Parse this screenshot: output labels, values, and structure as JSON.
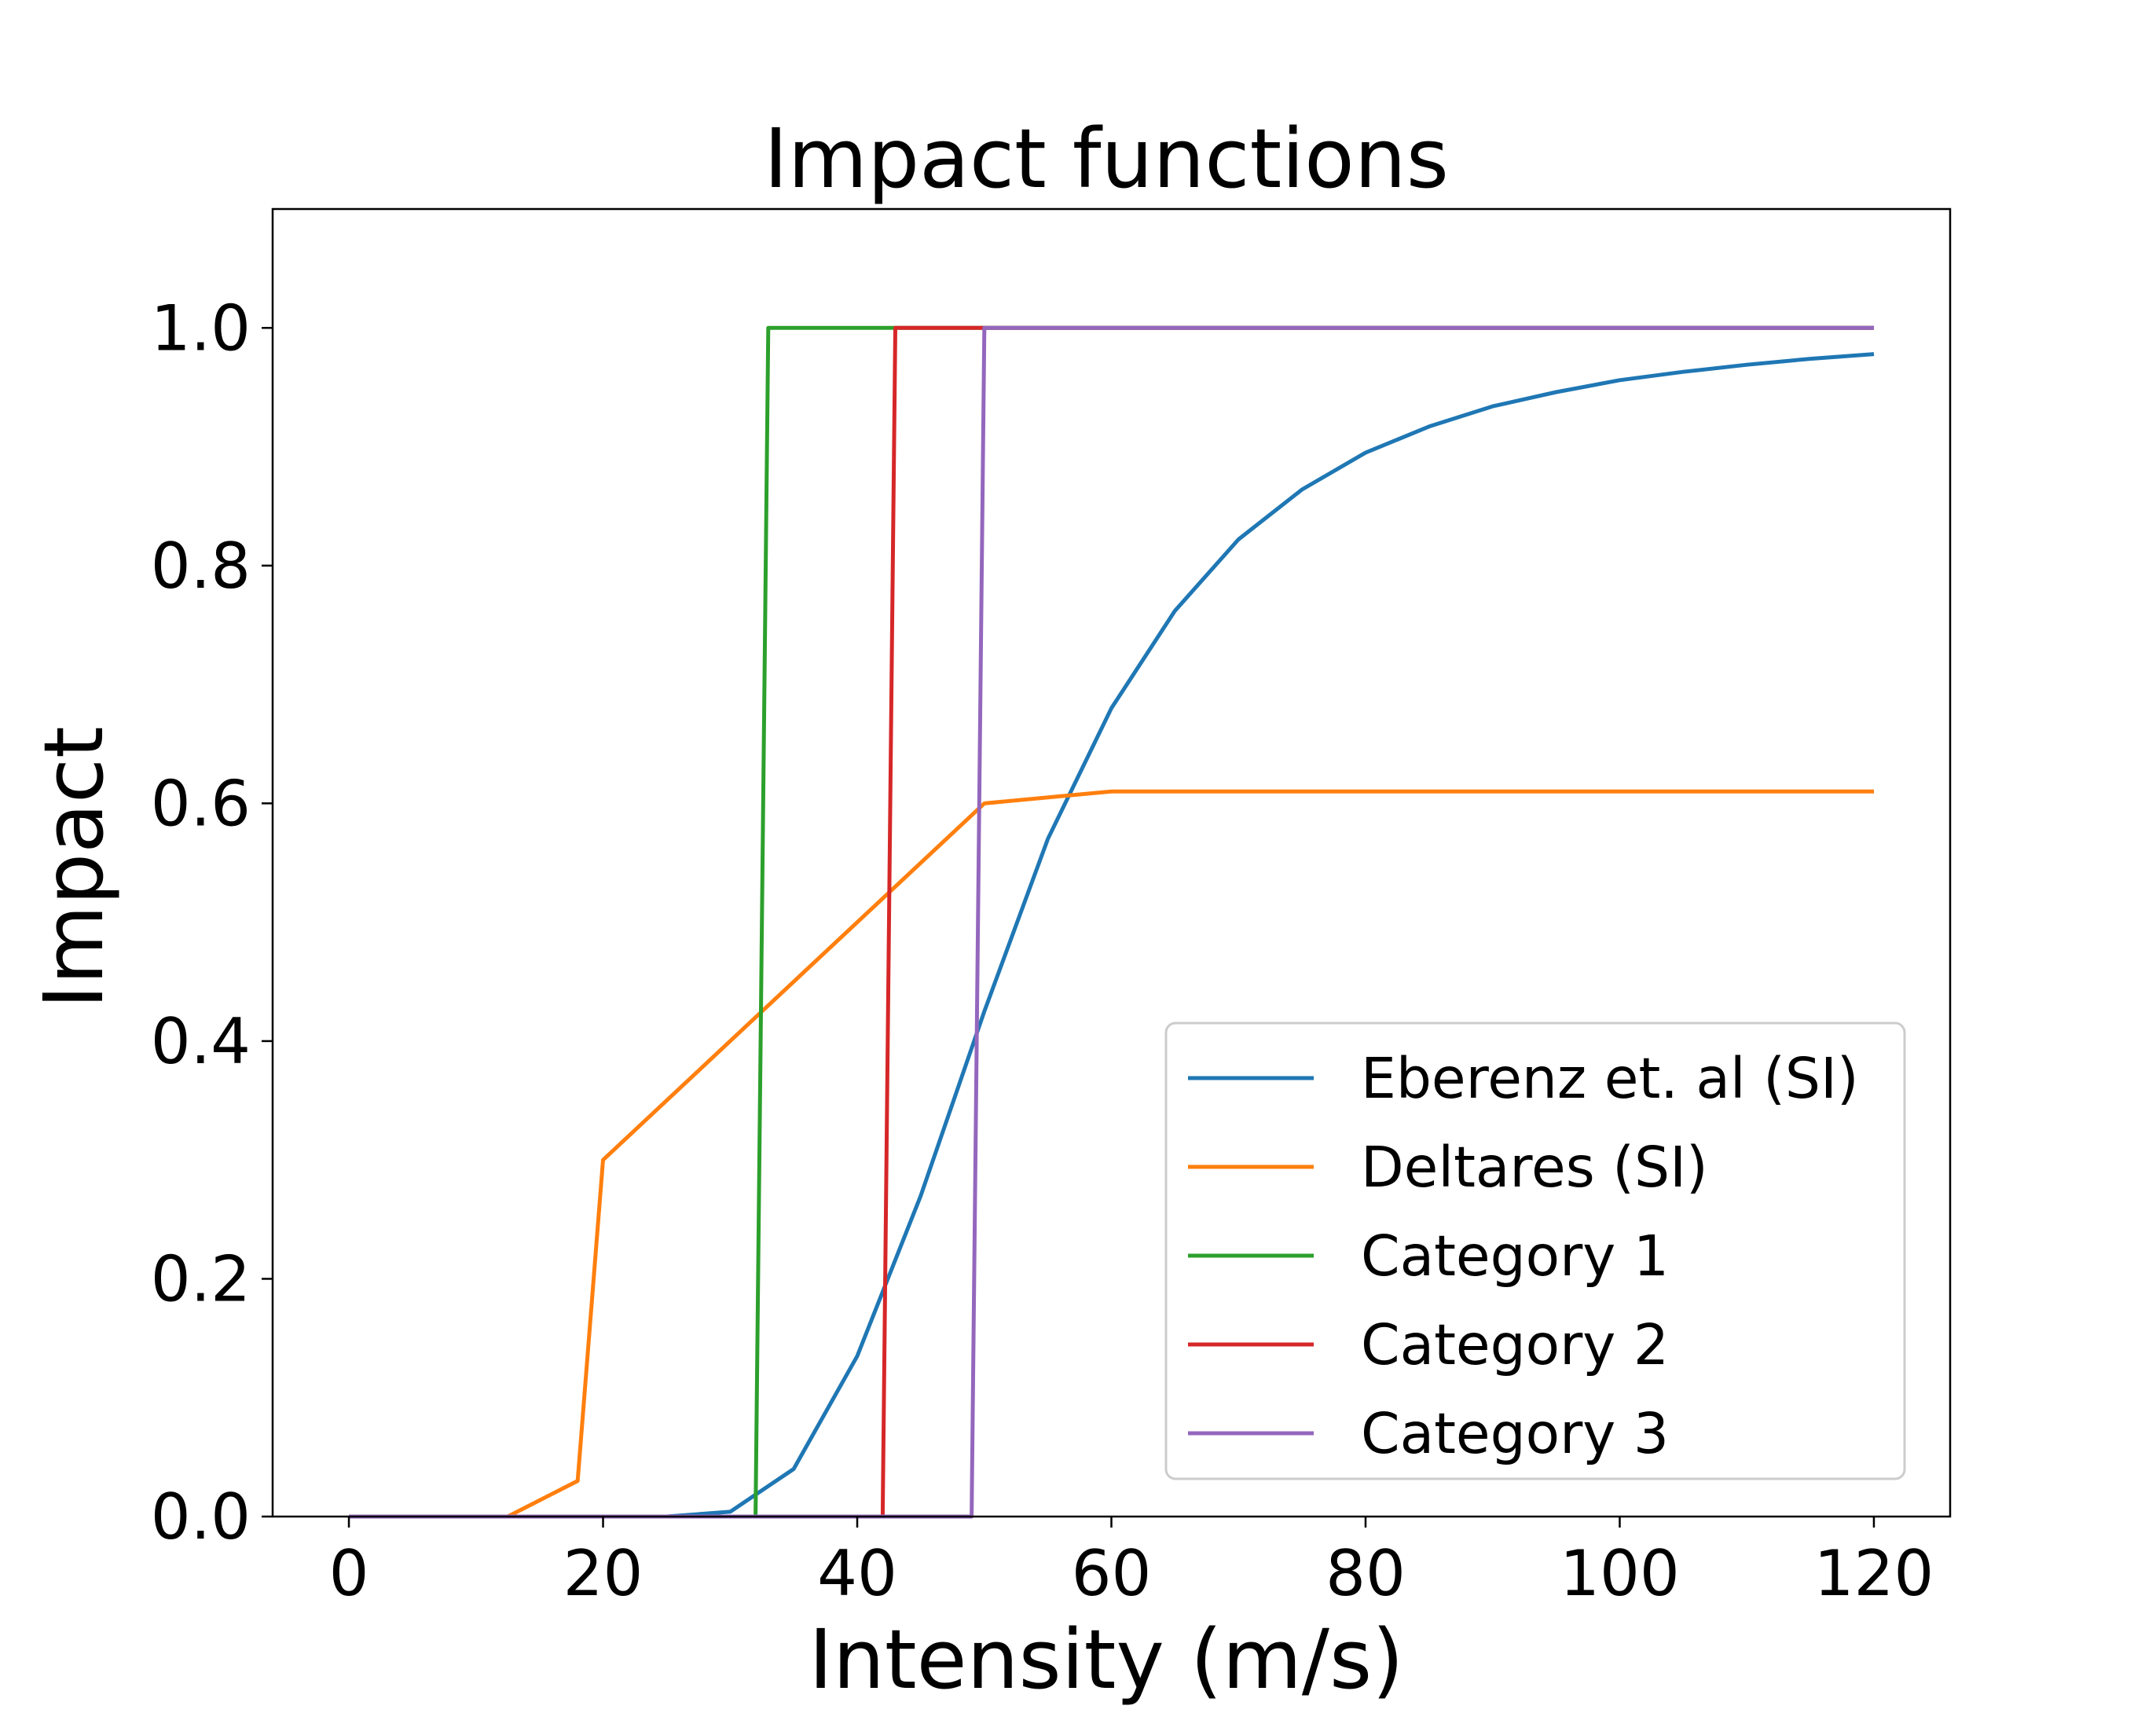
{
  "chart_data": {
    "type": "line",
    "title": "Impact functions",
    "xlabel": "Intensity (m/s)",
    "ylabel": "Impact",
    "xlim": [
      -6,
      126
    ],
    "ylim": [
      0.0,
      1.1
    ],
    "xticks": [
      0,
      20,
      40,
      60,
      80,
      100,
      120
    ],
    "xtick_labels": [
      "0",
      "20",
      "40",
      "60",
      "80",
      "100",
      "120"
    ],
    "yticks": [
      0.0,
      0.2,
      0.4,
      0.6,
      0.8,
      1.0
    ],
    "ytick_labels": [
      "0.0",
      "0.2",
      "0.4",
      "0.6",
      "0.8",
      "1.0"
    ],
    "grid": false,
    "legend_position": "lower-right",
    "series": [
      {
        "name": "Eberenz et. al (SI)",
        "color": "#1f77b4",
        "x": [
          0,
          5,
          10,
          15,
          20,
          25,
          30,
          35,
          40,
          45,
          50,
          55,
          60,
          65,
          70,
          75,
          80,
          85,
          90,
          95,
          100,
          105,
          110,
          115,
          120
        ],
        "y": [
          0,
          0,
          0,
          0,
          0,
          0,
          0.004,
          0.04,
          0.135,
          0.27,
          0.425,
          0.57,
          0.68,
          0.762,
          0.822,
          0.864,
          0.895,
          0.917,
          0.934,
          0.946,
          0.956,
          0.963,
          0.969,
          0.974,
          0.978
        ]
      },
      {
        "name": "Deltares (SI)",
        "color": "#ff7f0e",
        "x": [
          0,
          12.5,
          18,
          20,
          50,
          60,
          120
        ],
        "y": [
          0,
          0,
          0.03,
          0.3,
          0.6,
          0.61,
          0.61
        ]
      },
      {
        "name": "Category 1",
        "color": "#2ca02c",
        "x": [
          0,
          32,
          33,
          120
        ],
        "y": [
          0,
          0,
          1,
          1
        ]
      },
      {
        "name": "Category 2",
        "color": "#d62728",
        "x": [
          0,
          42,
          43,
          120
        ],
        "y": [
          0,
          0,
          1,
          1
        ]
      },
      {
        "name": "Category 3",
        "color": "#9467bd",
        "x": [
          0,
          49,
          50,
          120
        ],
        "y": [
          0,
          0,
          1,
          1
        ]
      }
    ]
  }
}
